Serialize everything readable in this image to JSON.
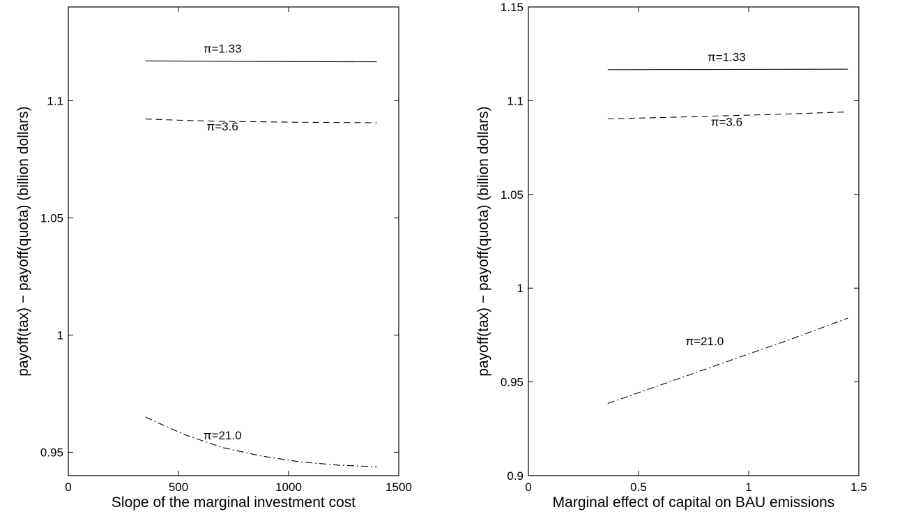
{
  "chart_data": [
    {
      "type": "line",
      "xlabel": "Slope of the marginal investment cost",
      "ylabel": "payoff(tax) − payoff(quota) (billion dollars)",
      "xlim": [
        0,
        1500
      ],
      "ylim": [
        0.94,
        1.14
      ],
      "xticks": [
        0,
        500,
        1000,
        1500
      ],
      "yticks": [
        0.95,
        1,
        1.05,
        1.1
      ],
      "xtick_labels": [
        "0",
        "500",
        "1000",
        "1500"
      ],
      "ytick_labels": [
        "0.95",
        "1",
        "1.05",
        "1.1"
      ],
      "grid": false,
      "series": [
        {
          "name": "π=1.33",
          "style": "solid",
          "x": [
            350,
            700,
            1050,
            1400
          ],
          "y": [
            1.117,
            1.1168,
            1.1167,
            1.1166
          ]
        },
        {
          "name": "π=3.6",
          "style": "dashed",
          "x": [
            350,
            525,
            700,
            875,
            1050,
            1225,
            1400
          ],
          "y": [
            1.0922,
            1.0916,
            1.0912,
            1.091,
            1.0908,
            1.0907,
            1.0906
          ]
        },
        {
          "name": "π=21.0",
          "style": "dashdot",
          "x": [
            350,
            525,
            700,
            875,
            1050,
            1225,
            1400
          ],
          "y": [
            0.965,
            0.9576,
            0.952,
            0.9484,
            0.9459,
            0.9445,
            0.9438
          ]
        }
      ]
    },
    {
      "type": "line",
      "xlabel": "Marginal effect of capital on BAU emissions",
      "ylabel": "payoff(tax) − payoff(quota) (billion dollars)",
      "xlim": [
        0,
        1.5
      ],
      "ylim": [
        0.9,
        1.15
      ],
      "xticks": [
        0,
        0.5,
        1,
        1.5
      ],
      "yticks": [
        0.9,
        0.95,
        1,
        1.05,
        1.1,
        1.15
      ],
      "xtick_labels": [
        "0",
        "0.5",
        "1",
        "1.5"
      ],
      "ytick_labels": [
        "0.9",
        "0.95",
        "1",
        "1.05",
        "1.1",
        "1.15"
      ],
      "grid": false,
      "series": [
        {
          "name": "π=1.33",
          "style": "solid",
          "x": [
            0.36,
            0.9,
            1.45
          ],
          "y": [
            1.1166,
            1.1167,
            1.1168
          ]
        },
        {
          "name": "π=3.6",
          "style": "dashed",
          "x": [
            0.36,
            0.72,
            1.09,
            1.45
          ],
          "y": [
            1.0903,
            1.0914,
            1.0926,
            1.094
          ]
        },
        {
          "name": "π=21.0",
          "style": "dashdot",
          "x": [
            0.36,
            0.63,
            0.9,
            1.18,
            1.45
          ],
          "y": [
            0.9385,
            0.9496,
            0.9608,
            0.9723,
            0.984
          ]
        }
      ]
    }
  ]
}
